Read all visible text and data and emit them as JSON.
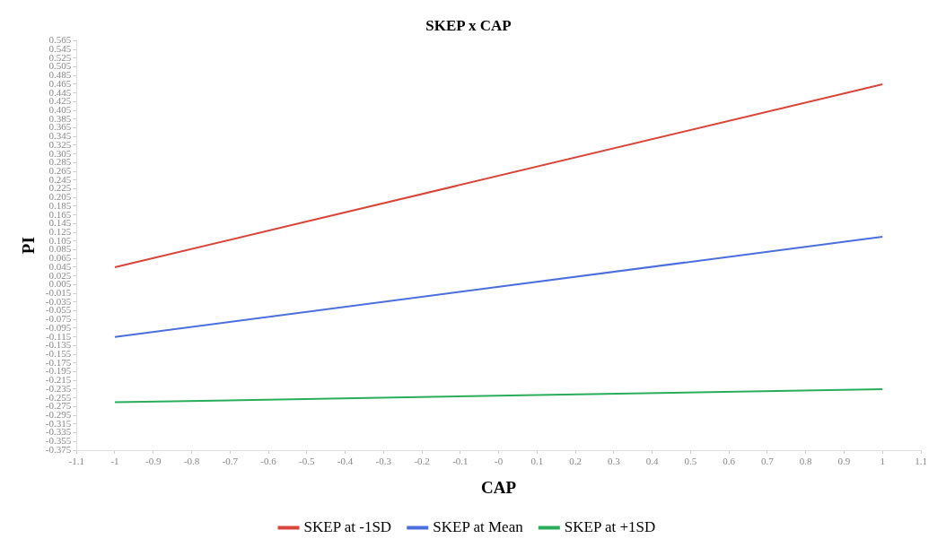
{
  "chart_data": {
    "type": "line",
    "title": "SKEP x CAP",
    "xlabel": "CAP",
    "ylabel": "PI",
    "x": [
      -1,
      1
    ],
    "xlim": [
      -1.1,
      1.1
    ],
    "xticks": [
      -1.1,
      -1,
      -0.9,
      -0.8,
      -0.7,
      -0.6,
      -0.5,
      -0.4,
      -0.3,
      -0.2,
      -0.1,
      {
        "value": 0,
        "label": "-0"
      },
      0.1,
      0.2,
      0.3,
      0.4,
      0.5,
      0.6,
      0.7,
      0.8,
      0.9,
      1,
      1.1
    ],
    "ylim": [
      -0.375,
      0.565
    ],
    "yticks": [
      0.565,
      0.545,
      0.525,
      0.505,
      0.485,
      0.465,
      0.445,
      0.425,
      0.405,
      0.385,
      0.365,
      0.345,
      0.325,
      0.305,
      0.285,
      0.265,
      0.245,
      0.225,
      0.205,
      0.185,
      0.165,
      0.145,
      0.125,
      0.105,
      0.085,
      0.065,
      0.045,
      0.025,
      0.005,
      -0.015,
      -0.035,
      -0.055,
      -0.075,
      -0.095,
      -0.115,
      -0.135,
      -0.155,
      -0.175,
      -0.195,
      -0.215,
      -0.235,
      -0.255,
      -0.275,
      -0.295,
      -0.315,
      -0.335,
      -0.355,
      -0.375
    ],
    "grid": false,
    "legend": "bottom",
    "marker": "none",
    "line_style": "solid",
    "series": [
      {
        "name": "SKEP at -1SD",
        "color": "#d9453a",
        "values": [
          0.045,
          0.465
        ]
      },
      {
        "name": "SKEP at Mean",
        "color": "#4a6fdc",
        "values": [
          -0.115,
          0.115
        ]
      },
      {
        "name": "SKEP at +1SD",
        "color": "#2aad5a",
        "values": [
          -0.265,
          -0.235
        ]
      }
    ]
  }
}
